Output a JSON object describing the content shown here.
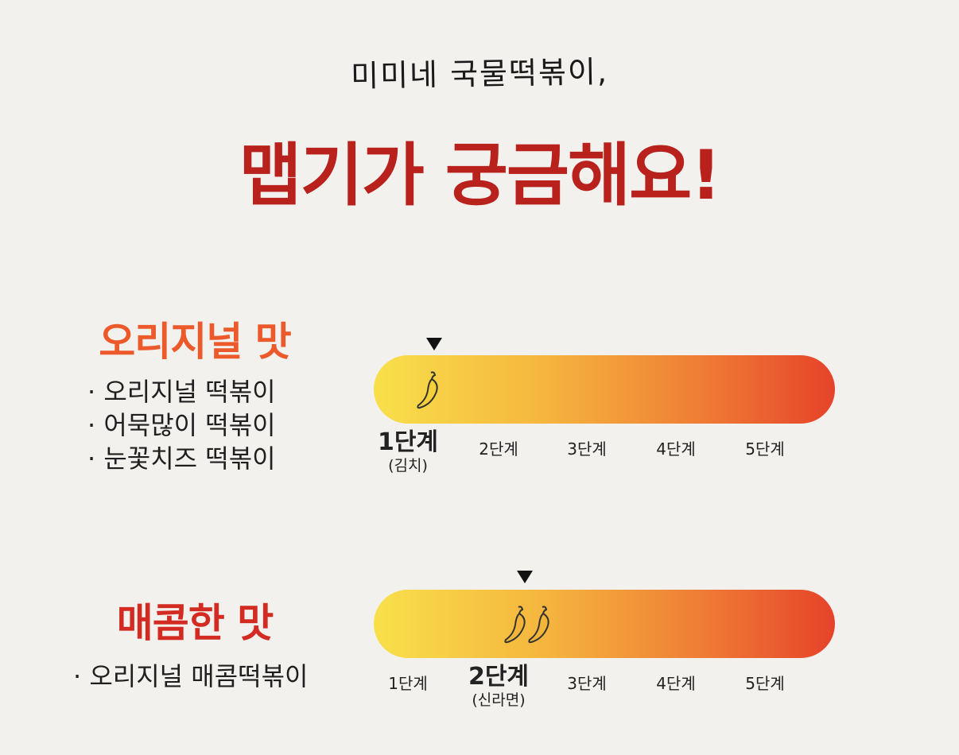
{
  "header": {
    "subtitle": "미미네 국물떡볶이,",
    "title": "맵기가 궁금해요!"
  },
  "sections": [
    {
      "title": "오리지널 맛",
      "menu": [
        "오리지널 떡볶이",
        "어묵많이 떡볶이",
        "눈꽃치즈 떡볶이"
      ],
      "level": 1,
      "steps": [
        "1단계",
        "2단계",
        "3단계",
        "4단계",
        "5단계"
      ],
      "active_note": "(김치)"
    },
    {
      "title": "매콤한 맛",
      "menu": [
        "오리지널 매콤떡볶이"
      ],
      "level": 2,
      "steps": [
        "1단계",
        "2단계",
        "3단계",
        "4단계",
        "5단계"
      ],
      "active_note": "(신라면)"
    }
  ],
  "colors": {
    "title": "#b8211c",
    "original_title": "#ec5a2c",
    "spicy_title": "#d32a22",
    "bar_start": "#f8e04a",
    "bar_end": "#e6432a"
  },
  "icons": {
    "level_marker": "triangle-down-icon",
    "spice": "chili-pepper-icon"
  }
}
